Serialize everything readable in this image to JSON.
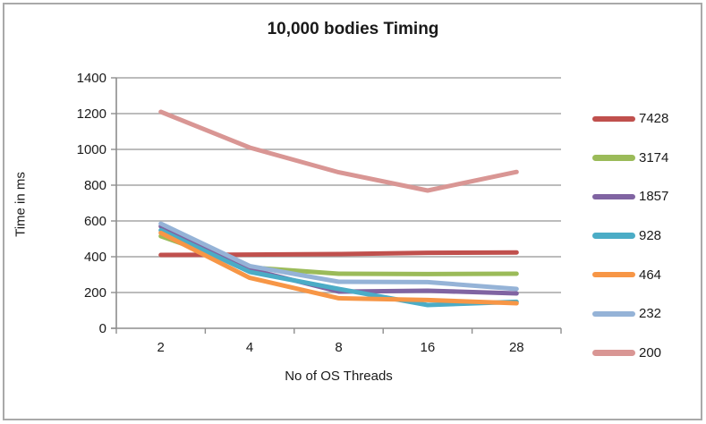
{
  "chart_data": {
    "type": "line",
    "title": "10,000 bodies Timing",
    "xlabel": "No of OS Threads",
    "ylabel": "Time in ms",
    "x_categories": [
      "2",
      "4",
      "8",
      "16",
      "28"
    ],
    "y_ticks": [
      0,
      200,
      400,
      600,
      800,
      1000,
      1200,
      1400
    ],
    "ylim": [
      0,
      1400
    ],
    "grid": "horizontal",
    "legend_position": "right",
    "grid_color": "#a6a6a6",
    "axis_color": "#8e8e8e",
    "series": [
      {
        "name": "7428",
        "color": "#C0504D",
        "values": [
          410,
          412,
          415,
          422,
          424
        ]
      },
      {
        "name": "3174",
        "color": "#9BBB59",
        "values": [
          515,
          340,
          305,
          303,
          305
        ]
      },
      {
        "name": "1857",
        "color": "#8064A2",
        "values": [
          570,
          330,
          205,
          210,
          195
        ]
      },
      {
        "name": "928",
        "color": "#4BACC6",
        "values": [
          548,
          315,
          220,
          130,
          148
        ]
      },
      {
        "name": "464",
        "color": "#F79646",
        "values": [
          533,
          282,
          168,
          158,
          140
        ]
      },
      {
        "name": "232",
        "color": "#95B3D7",
        "values": [
          585,
          348,
          260,
          258,
          220
        ]
      },
      {
        "name": "200",
        "color": "#D99694",
        "values": [
          1210,
          1010,
          872,
          770,
          874
        ]
      }
    ]
  }
}
